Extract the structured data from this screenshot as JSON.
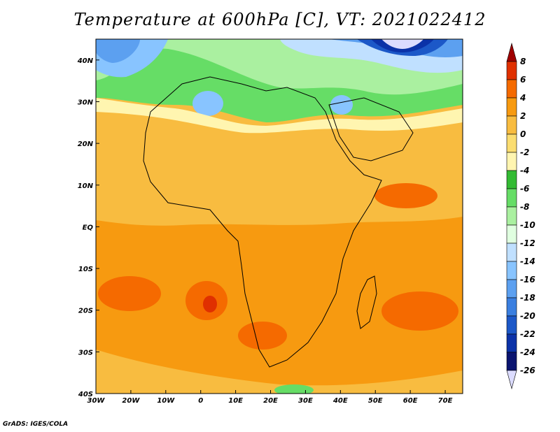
{
  "title": "Temperature at 600hPa [C], VT: 2021022412",
  "footer": "GrADS: IGES/COLA",
  "map": {
    "lon_range": [
      -30,
      75
    ],
    "lat_range": [
      -40,
      45
    ],
    "lon_ticks": [
      "30W",
      "20W",
      "10W",
      "0",
      "10E",
      "20E",
      "30E",
      "40E",
      "50E",
      "60E",
      "70E"
    ],
    "lon_values": [
      -30,
      -20,
      -10,
      0,
      10,
      20,
      30,
      40,
      50,
      60,
      70
    ],
    "lat_ticks": [
      "40N",
      "30N",
      "20N",
      "10N",
      "EQ",
      "10S",
      "20S",
      "30S",
      "40S"
    ],
    "lat_values": [
      40,
      30,
      20,
      10,
      0,
      -10,
      -20,
      -30,
      -40
    ]
  },
  "colorbar": {
    "labels": [
      "8",
      "6",
      "4",
      "2",
      "0",
      "-2",
      "-4",
      "-6",
      "-8",
      "-10",
      "-12",
      "-14",
      "-16",
      "-18",
      "-20",
      "-22",
      "-24",
      "-26"
    ],
    "colors": [
      "#a00000",
      "#e03000",
      "#f56a00",
      "#f79a10",
      "#f8bc40",
      "#fbdd70",
      "#fff5b0",
      "#33bb33",
      "#66dd66",
      "#aaf0a0",
      "#e0ffe0",
      "#c0e0ff",
      "#88c4ff",
      "#5ca0f0",
      "#3a7fe0",
      "#1c58c8",
      "#0b32a8",
      "#0a1470",
      "#dcdcff"
    ]
  }
}
